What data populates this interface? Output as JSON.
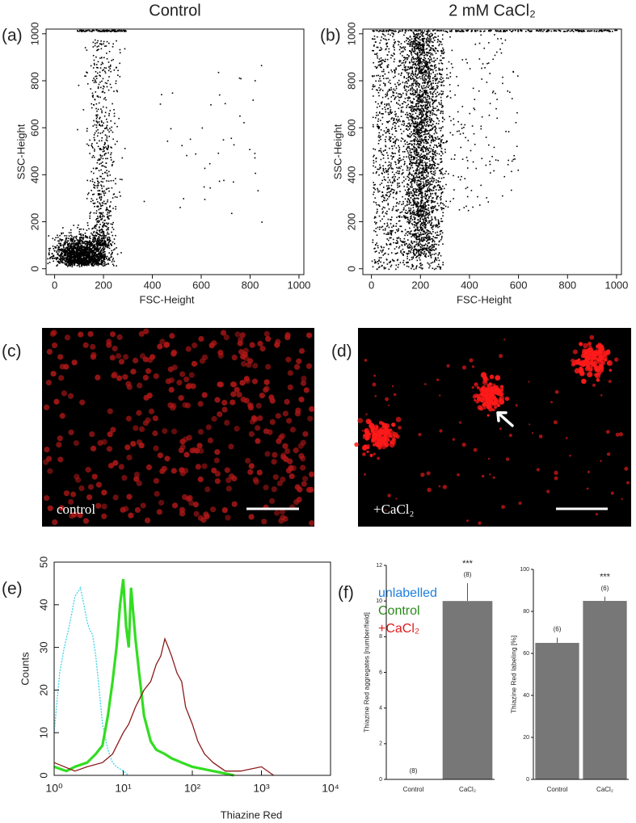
{
  "panel_labels": [
    "(a)",
    "(b)",
    "(c)",
    "(d)",
    "(e)",
    "(f)"
  ],
  "images": [
    {
      "caption": "control"
    },
    {
      "caption": "+CaCl₂"
    }
  ],
  "chart_data": [
    {
      "type": "scatter",
      "title": "Control",
      "xlabel": "FSC-Height",
      "ylabel": "SSC-Height",
      "xlim": [
        -35,
        1020
      ],
      "ylim": [
        -25,
        1020
      ],
      "xticks": [
        0,
        200,
        400,
        600,
        800,
        1000
      ],
      "yticks": [
        0,
        200,
        400,
        600,
        800,
        1000
      ],
      "color": "#000000"
    },
    {
      "type": "scatter",
      "title": "2 mM CaCl₂",
      "xlabel": "FSC-Height",
      "ylabel": "SSC-Height",
      "xlim": [
        -35,
        1020
      ],
      "ylim": [
        -25,
        1020
      ],
      "xticks": [
        0,
        200,
        400,
        600,
        800,
        1000
      ],
      "yticks": [
        0,
        200,
        400,
        600,
        800,
        1000
      ],
      "color": "#000000"
    },
    {
      "type": "line",
      "xlabel": "Thiazine Red",
      "ylabel": "Counts",
      "log_x": true,
      "xlim": [
        1,
        10000
      ],
      "ylim": [
        0,
        50
      ],
      "xticks": [
        {
          "value": 1,
          "label": "10⁰"
        },
        {
          "value": 10,
          "label": "10¹"
        },
        {
          "value": 100,
          "label": "10²"
        },
        {
          "value": 1000,
          "label": "10³"
        },
        {
          "value": 10000,
          "label": "10⁴"
        }
      ],
      "yticks": [
        0,
        10,
        20,
        30,
        40,
        50
      ],
      "series": [
        {
          "name": "unlabelled",
          "color": "#3fd3e6",
          "legend_color": "#1e7fe0",
          "line_style": "dotted",
          "x": [
            1,
            1.2,
            1.4,
            1.6,
            1.8,
            2,
            2.2,
            2.4,
            2.7,
            3,
            3.3,
            3.6,
            4,
            4.5,
            5,
            6,
            7,
            8,
            10,
            12
          ],
          "values": [
            10,
            24,
            30,
            34,
            38,
            42,
            43,
            44,
            40,
            36,
            34,
            33,
            28,
            20,
            12,
            6,
            3,
            2,
            1,
            0
          ]
        },
        {
          "name": "Control",
          "color": "#33dd22",
          "legend_color": "#2a8a1a",
          "line_style": "solid",
          "x": [
            1,
            1.5,
            2,
            3,
            4,
            5,
            6,
            7,
            8,
            9,
            10,
            11,
            12,
            13,
            15,
            17,
            20,
            25,
            30,
            40,
            50,
            70,
            100,
            200,
            400
          ],
          "values": [
            2,
            1,
            2,
            3,
            5,
            7,
            14,
            22,
            30,
            40,
            46,
            35,
            30,
            44,
            32,
            24,
            14,
            8,
            6,
            5,
            4,
            3,
            2,
            1,
            0
          ]
        },
        {
          "name": "+CaCl₂",
          "color": "#8b1a1a",
          "legend_color": "#e01a1a",
          "line_style": "solid",
          "x": [
            1,
            2,
            3,
            5,
            7,
            10,
            12,
            15,
            20,
            25,
            30,
            35,
            40,
            45,
            50,
            60,
            70,
            80,
            100,
            120,
            150,
            200,
            300,
            500,
            1000,
            1500
          ],
          "values": [
            3,
            1,
            2,
            3,
            5,
            10,
            12,
            16,
            20,
            22,
            26,
            28,
            32,
            30,
            28,
            24,
            22,
            16,
            12,
            8,
            5,
            3,
            1,
            1,
            2,
            0
          ]
        }
      ]
    },
    {
      "type": "bar",
      "ylabel": "Thiazine Red aggregates [number/field]",
      "categories": [
        "Control",
        "CaCl₂"
      ],
      "values": [
        0,
        10
      ],
      "errors": [
        null,
        1
      ],
      "n_labels": [
        "(8)",
        "(8)"
      ],
      "stars": "***",
      "color": "#777777",
      "ylim": [
        0,
        12
      ],
      "yticks": [
        0,
        2,
        4,
        6,
        8,
        10,
        12
      ]
    },
    {
      "type": "bar",
      "ylabel": "Thiazine Red labeling [%]",
      "categories": [
        "Control",
        "CaCl₂"
      ],
      "values": [
        65,
        85
      ],
      "errors": [
        2.5,
        2
      ],
      "n_labels": [
        "(6)",
        "(6)"
      ],
      "stars": "***",
      "color": "#777777",
      "ylim": [
        0,
        100
      ],
      "yticks": [
        0,
        20,
        40,
        60,
        80,
        100
      ]
    }
  ]
}
